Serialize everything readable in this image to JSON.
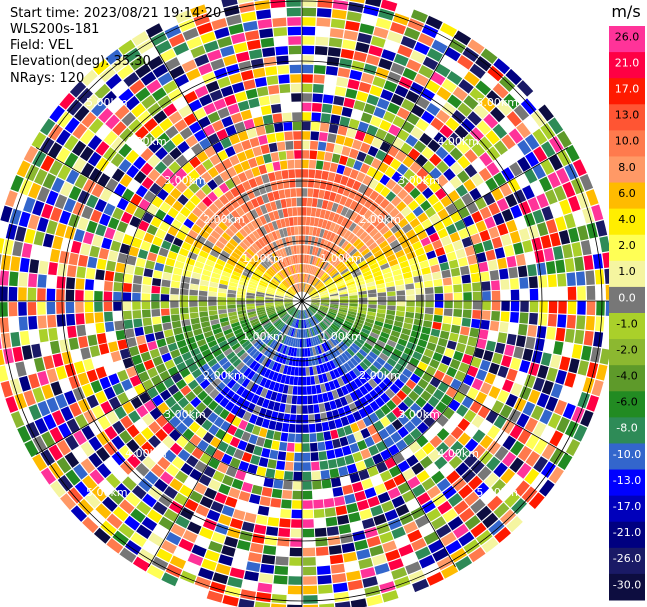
{
  "plot": {
    "start_time": "Start time: 2023/08/21 19:14:20",
    "device": "WLS200s-181",
    "field": "Field: VEL",
    "elevation": "Elevation(deg): 35.30",
    "nrays": "NRays: 120"
  },
  "range_rings": {
    "labels": [
      "1.00km",
      "2.00km",
      "3.00km",
      "4.00km",
      "5.00km"
    ]
  },
  "colorbar": {
    "unit": "m/s",
    "ticks": [
      "26.0",
      "21.0",
      "17.0",
      "13.0",
      "10.0",
      "8.0",
      "6.0",
      "4.0",
      "2.0",
      "1.0",
      "0.0",
      "-1.0",
      "-2.0",
      "-4.0",
      "-6.0",
      "-8.0",
      "-10.0",
      "-13.0",
      "-17.0",
      "-21.0",
      "-26.0",
      "-30.0"
    ],
    "colors": [
      "#ff3399",
      "#ff0044",
      "#ff1a00",
      "#ff5533",
      "#ff7a4d",
      "#ff9966",
      "#ffbb00",
      "#ffee00",
      "#ffff55",
      "#f5f5a0",
      "#777777",
      "#aad02a",
      "#8cb830",
      "#5e9a2a",
      "#228b22",
      "#2e8b57",
      "#3366cc",
      "#0000ff",
      "#0000bb",
      "#000080",
      "#1a1a66",
      "#0d0d40"
    ]
  }
}
